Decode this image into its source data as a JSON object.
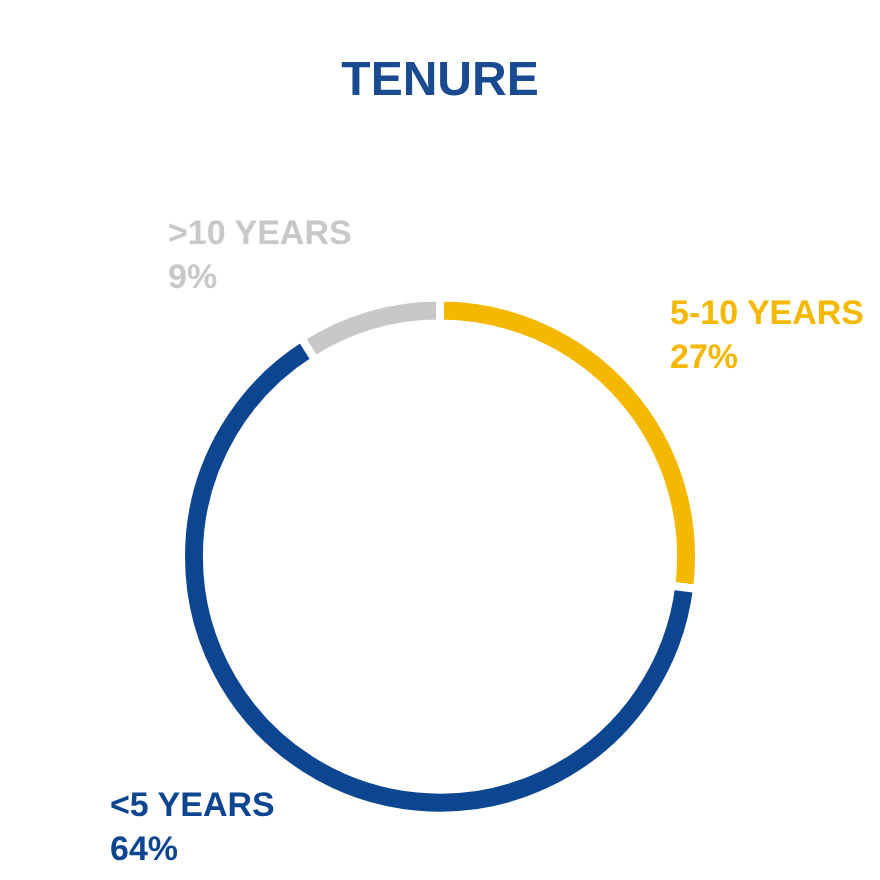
{
  "chart_data": {
    "type": "donut",
    "title": "TENURE",
    "categories": [
      "5-10 YEARS",
      "<5 YEARS",
      ">10 YEARS"
    ],
    "values": [
      27,
      64,
      9
    ],
    "value_labels": [
      "27%",
      "64%",
      "9%"
    ],
    "colors": [
      "#f5b800",
      "#0d4690",
      "#c8c8c8"
    ],
    "legend": false
  }
}
